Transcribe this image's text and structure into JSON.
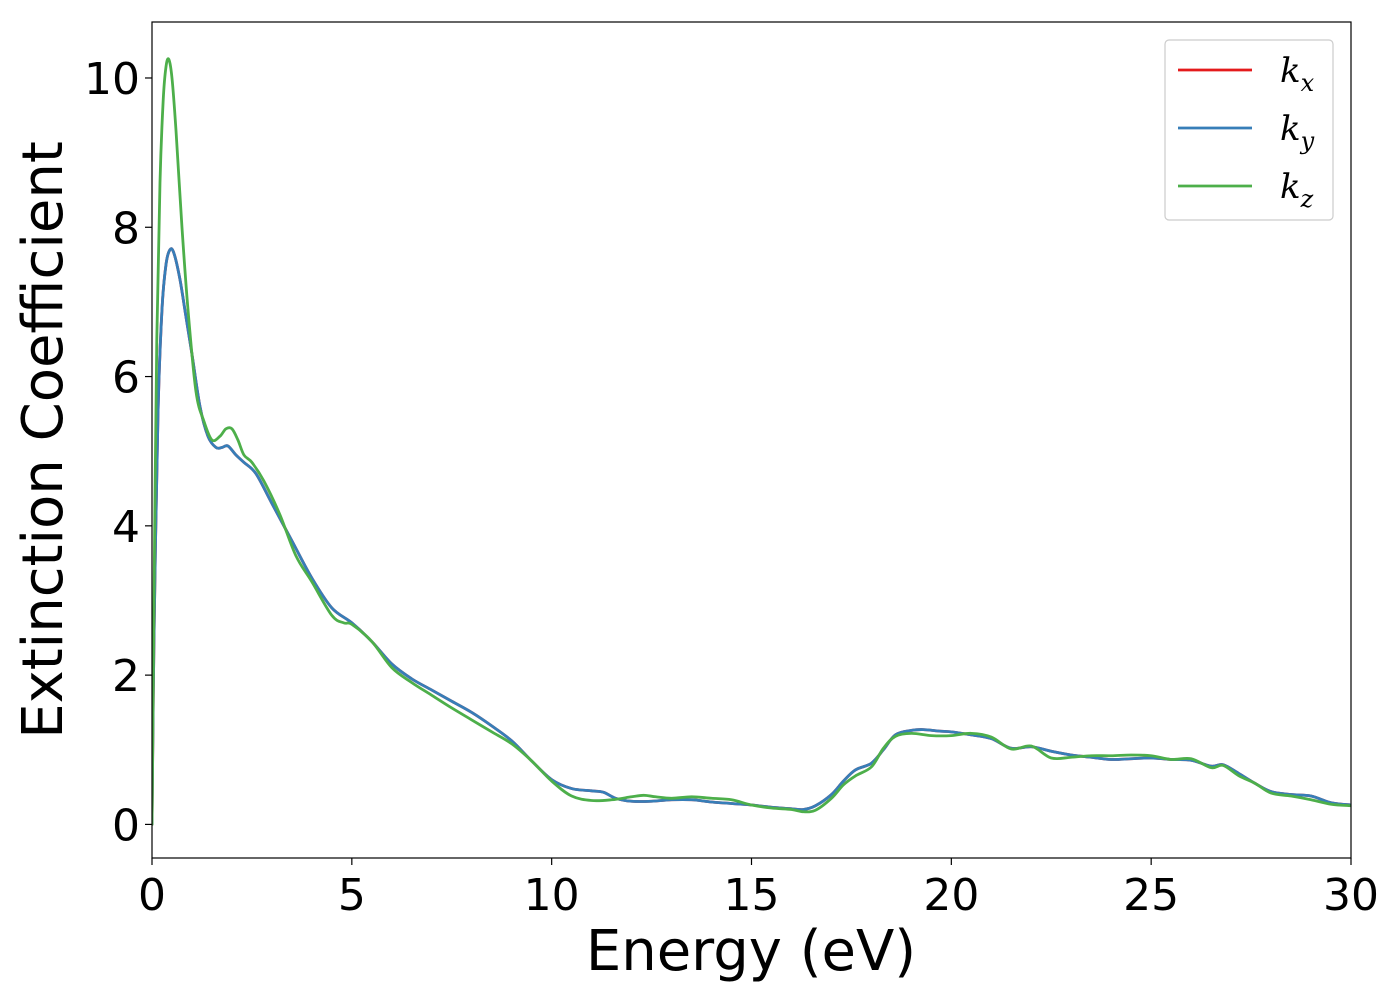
{
  "chart_data": {
    "type": "line",
    "title": "",
    "xlabel": "Energy (eV)",
    "ylabel": "Extinction Coefficient",
    "xlim": [
      0,
      30
    ],
    "ylim": [
      -0.45,
      10.75
    ],
    "xticks": [
      0,
      5,
      10,
      15,
      20,
      25,
      30
    ],
    "yticks": [
      0,
      2,
      4,
      6,
      8,
      10
    ],
    "xtick_labels": [
      "0",
      "5",
      "10",
      "15",
      "20",
      "25",
      "30"
    ],
    "ytick_labels": [
      "0",
      "2",
      "4",
      "6",
      "8",
      "10"
    ],
    "grid": false,
    "legend_position": "top-right",
    "series": [
      {
        "name": "k_x",
        "legend_base": "k",
        "legend_sub": "x",
        "color": "#e41a1c",
        "x": [
          0,
          0.05,
          0.15,
          0.25,
          0.35,
          0.45,
          0.55,
          0.7,
          0.85,
          1.0,
          1.2,
          1.4,
          1.6,
          1.75,
          1.9,
          2.1,
          2.3,
          2.6,
          3.0,
          3.5,
          4.0,
          4.5,
          5.0,
          5.5,
          6.0,
          6.5,
          7.0,
          7.5,
          8.0,
          8.5,
          9.0,
          9.5,
          10.0,
          10.5,
          11.0,
          11.3,
          11.6,
          12.0,
          12.5,
          13.0,
          13.5,
          14.0,
          14.5,
          15.0,
          15.5,
          16.0,
          16.3,
          16.6,
          17.0,
          17.3,
          17.6,
          18.0,
          18.3,
          18.6,
          19.0,
          19.3,
          19.7,
          20.0,
          20.5,
          21.0,
          21.5,
          22.0,
          22.5,
          23.0,
          23.5,
          24.0,
          24.5,
          25.0,
          25.5,
          26.0,
          26.5,
          26.8,
          27.2,
          27.6,
          28.0,
          28.5,
          29.0,
          29.5,
          30.0
        ],
        "y": [
          0,
          2.5,
          5.5,
          6.9,
          7.5,
          7.7,
          7.65,
          7.3,
          6.8,
          6.3,
          5.6,
          5.2,
          5.05,
          5.05,
          5.07,
          4.95,
          4.85,
          4.7,
          4.3,
          3.8,
          3.3,
          2.9,
          2.7,
          2.45,
          2.15,
          1.95,
          1.8,
          1.65,
          1.5,
          1.32,
          1.12,
          0.85,
          0.6,
          0.48,
          0.45,
          0.43,
          0.35,
          0.31,
          0.31,
          0.33,
          0.33,
          0.3,
          0.28,
          0.26,
          0.23,
          0.21,
          0.2,
          0.25,
          0.4,
          0.58,
          0.73,
          0.82,
          1.0,
          1.2,
          1.26,
          1.27,
          1.25,
          1.24,
          1.2,
          1.15,
          1.02,
          1.04,
          0.98,
          0.93,
          0.9,
          0.87,
          0.88,
          0.89,
          0.87,
          0.86,
          0.78,
          0.8,
          0.68,
          0.55,
          0.44,
          0.4,
          0.38,
          0.29,
          0.26
        ]
      },
      {
        "name": "k_y",
        "legend_base": "k",
        "legend_sub": "y",
        "color": "#377eb8",
        "x": [
          0,
          0.05,
          0.15,
          0.25,
          0.35,
          0.45,
          0.55,
          0.7,
          0.85,
          1.0,
          1.2,
          1.4,
          1.6,
          1.75,
          1.9,
          2.1,
          2.3,
          2.6,
          3.0,
          3.5,
          4.0,
          4.5,
          5.0,
          5.5,
          6.0,
          6.5,
          7.0,
          7.5,
          8.0,
          8.5,
          9.0,
          9.5,
          10.0,
          10.5,
          11.0,
          11.3,
          11.6,
          12.0,
          12.5,
          13.0,
          13.5,
          14.0,
          14.5,
          15.0,
          15.5,
          16.0,
          16.3,
          16.6,
          17.0,
          17.3,
          17.6,
          18.0,
          18.3,
          18.6,
          19.0,
          19.3,
          19.7,
          20.0,
          20.5,
          21.0,
          21.5,
          22.0,
          22.5,
          23.0,
          23.5,
          24.0,
          24.5,
          25.0,
          25.5,
          26.0,
          26.5,
          26.8,
          27.2,
          27.6,
          28.0,
          28.5,
          29.0,
          29.5,
          30.0
        ],
        "y": [
          0,
          2.5,
          5.5,
          6.9,
          7.5,
          7.7,
          7.65,
          7.3,
          6.8,
          6.3,
          5.6,
          5.2,
          5.05,
          5.05,
          5.07,
          4.95,
          4.85,
          4.7,
          4.3,
          3.8,
          3.3,
          2.9,
          2.7,
          2.45,
          2.15,
          1.95,
          1.8,
          1.65,
          1.5,
          1.32,
          1.12,
          0.85,
          0.6,
          0.48,
          0.45,
          0.43,
          0.35,
          0.31,
          0.31,
          0.33,
          0.33,
          0.3,
          0.28,
          0.26,
          0.23,
          0.21,
          0.2,
          0.25,
          0.4,
          0.58,
          0.73,
          0.82,
          1.0,
          1.2,
          1.26,
          1.27,
          1.25,
          1.24,
          1.2,
          1.15,
          1.02,
          1.04,
          0.98,
          0.93,
          0.9,
          0.87,
          0.88,
          0.89,
          0.87,
          0.86,
          0.78,
          0.8,
          0.68,
          0.55,
          0.44,
          0.4,
          0.38,
          0.29,
          0.26
        ]
      },
      {
        "name": "k_z",
        "legend_base": "k",
        "legend_sub": "z",
        "color": "#4daf4a",
        "x": [
          0,
          0.05,
          0.12,
          0.2,
          0.28,
          0.35,
          0.42,
          0.5,
          0.6,
          0.75,
          0.9,
          1.1,
          1.3,
          1.5,
          1.7,
          1.85,
          2.0,
          2.15,
          2.3,
          2.5,
          2.8,
          3.2,
          3.6,
          4.0,
          4.5,
          4.8,
          5.0,
          5.5,
          6.0,
          6.5,
          7.0,
          7.5,
          8.0,
          8.5,
          9.0,
          9.5,
          10.0,
          10.5,
          11.0,
          11.5,
          12.0,
          12.3,
          12.6,
          13.0,
          13.5,
          14.0,
          14.5,
          15.0,
          15.5,
          16.0,
          16.3,
          16.6,
          17.0,
          17.3,
          17.6,
          18.0,
          18.3,
          18.6,
          19.0,
          19.5,
          20.0,
          20.5,
          21.0,
          21.5,
          22.0,
          22.5,
          23.0,
          23.5,
          24.0,
          24.5,
          25.0,
          25.5,
          26.0,
          26.5,
          26.8,
          27.2,
          27.6,
          28.0,
          28.5,
          29.0,
          29.5,
          30.0
        ],
        "y": [
          0,
          3.0,
          6.5,
          8.6,
          9.7,
          10.15,
          10.25,
          10.0,
          9.3,
          8.0,
          6.9,
          5.8,
          5.4,
          5.15,
          5.2,
          5.3,
          5.3,
          5.15,
          4.95,
          4.85,
          4.6,
          4.15,
          3.6,
          3.25,
          2.8,
          2.7,
          2.68,
          2.45,
          2.1,
          1.9,
          1.73,
          1.56,
          1.4,
          1.24,
          1.08,
          0.85,
          0.58,
          0.38,
          0.32,
          0.33,
          0.37,
          0.39,
          0.37,
          0.35,
          0.37,
          0.35,
          0.33,
          0.26,
          0.22,
          0.2,
          0.17,
          0.19,
          0.35,
          0.53,
          0.65,
          0.77,
          1.02,
          1.18,
          1.22,
          1.19,
          1.19,
          1.22,
          1.17,
          1.01,
          1.05,
          0.89,
          0.9,
          0.92,
          0.92,
          0.93,
          0.92,
          0.87,
          0.88,
          0.76,
          0.79,
          0.65,
          0.55,
          0.42,
          0.38,
          0.33,
          0.27,
          0.25
        ]
      }
    ]
  }
}
